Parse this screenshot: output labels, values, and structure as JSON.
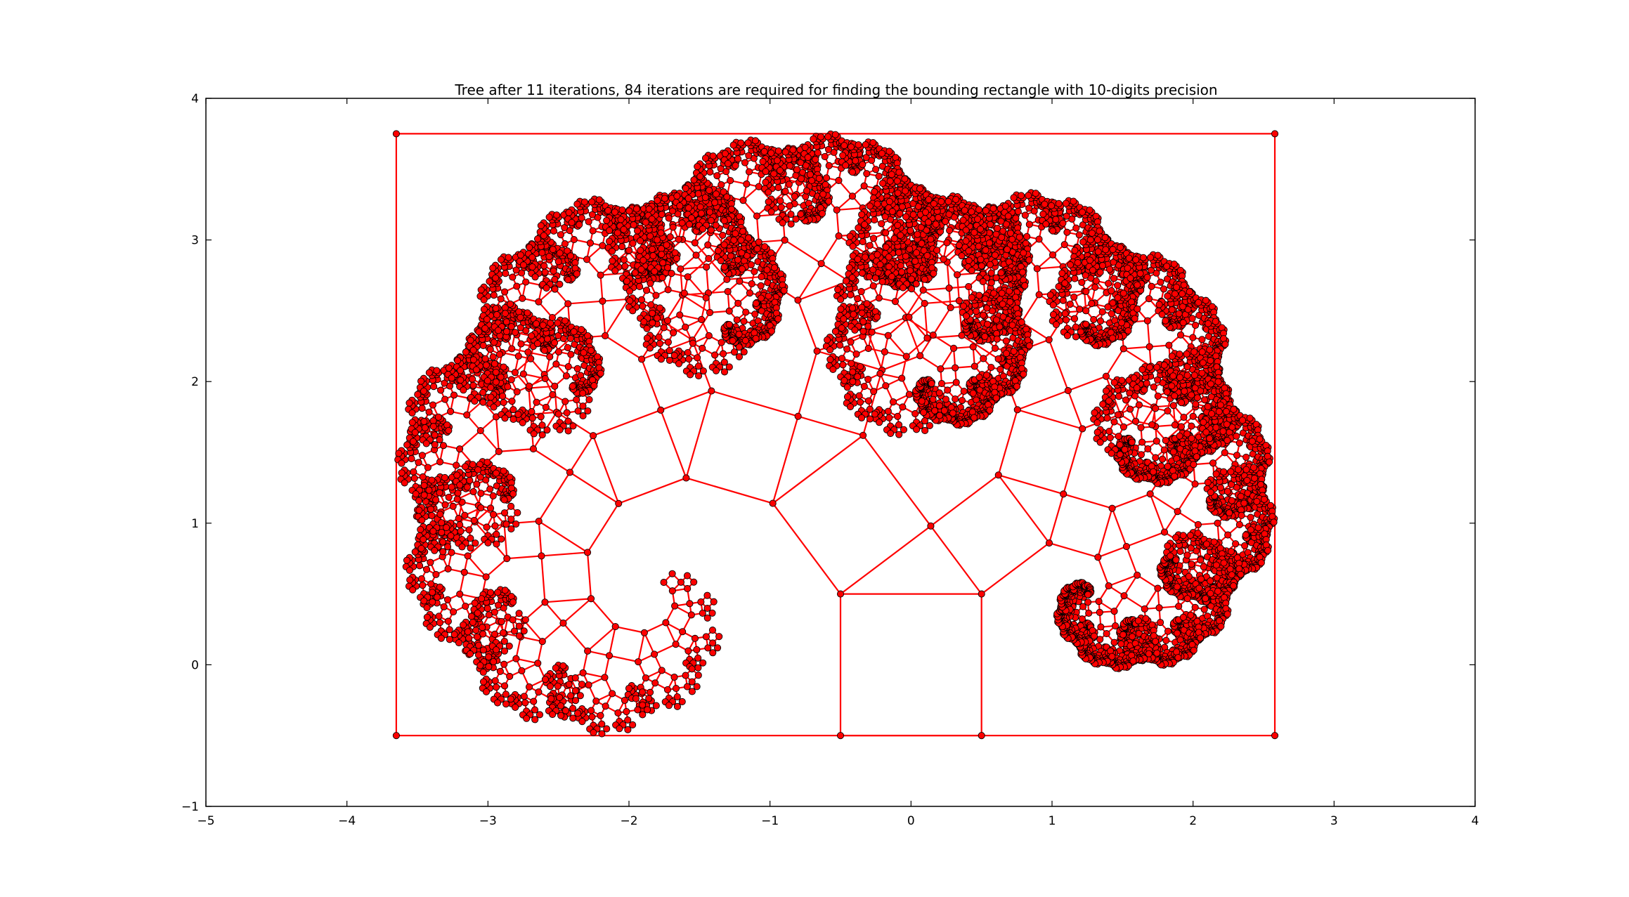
{
  "chart_data": {
    "type": "scatter",
    "title": "Tree after 11 iterations, 84 iterations are required for finding the bounding rectangle with 10-digits precision",
    "xlabel": "",
    "ylabel": "",
    "xlim": [
      -5,
      4
    ],
    "ylim": [
      -1,
      4
    ],
    "xticks": [
      -5,
      -4,
      -3,
      -2,
      -1,
      0,
      1,
      2,
      3,
      4
    ],
    "yticks": [
      -1,
      0,
      1,
      2,
      3,
      4
    ],
    "xtick_labels": [
      "−5",
      "−4",
      "−3",
      "−2",
      "−1",
      "0",
      "1",
      "2",
      "3",
      "4"
    ],
    "ytick_labels": [
      "−1",
      "0",
      "1",
      "2",
      "3",
      "4"
    ],
    "grid": false,
    "legend": "none",
    "series": [
      {
        "kind": "fractal-tree",
        "color": "#ff0000",
        "marker_edge": "#000000",
        "iterations": 11,
        "angle_deg": 36.87,
        "trunk": {
          "points": [
            [
              -0.5,
              -0.5
            ],
            [
              0.5,
              -0.5
            ],
            [
              0.5,
              0.5
            ],
            [
              -0.5,
              0.5
            ]
          ]
        }
      },
      {
        "kind": "bounding-rectangle",
        "color": "#ff0000",
        "marker_edge": "#000000",
        "points": [
          [
            -3.65,
            -0.5
          ],
          [
            2.58,
            -0.5
          ],
          [
            2.58,
            3.75
          ],
          [
            -3.65,
            3.75
          ]
        ]
      }
    ]
  }
}
